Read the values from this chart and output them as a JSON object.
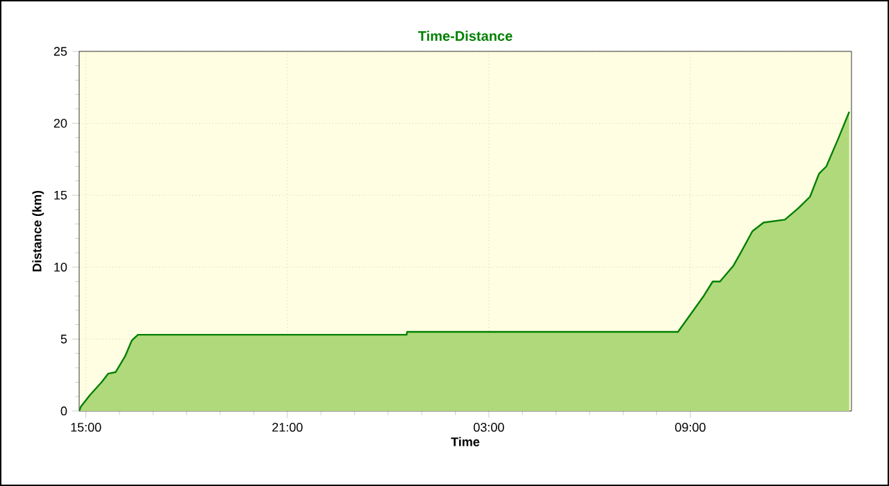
{
  "chart_data": {
    "type": "area",
    "title": "Time-Distance",
    "xlabel": "Time",
    "ylabel": "Distance (km)",
    "x": [
      "2000-01-01T14:48",
      "2000-01-01T14:51",
      "2000-01-01T15:07",
      "2000-01-01T15:28",
      "2000-01-01T15:40",
      "2000-01-01T15:53",
      "2000-01-01T16:10",
      "2000-01-01T16:22",
      "2000-01-01T16:33",
      "2000-01-02T00:33",
      "2000-01-02T00:34",
      "2000-01-02T08:38",
      "2000-01-02T09:24",
      "2000-01-02T09:40",
      "2000-01-02T09:53",
      "2000-01-02T10:17",
      "2000-01-02T10:30",
      "2000-01-02T10:51",
      "2000-01-02T11:11",
      "2000-01-02T11:49",
      "2000-01-02T12:13",
      "2000-01-02T12:34",
      "2000-01-02T12:50",
      "2000-01-02T13:03",
      "2000-01-02T13:24",
      "2000-01-02T13:44"
    ],
    "series": [
      {
        "color": "#008000",
        "values": [
          0,
          0.3,
          1.1,
          2.0,
          2.6,
          2.7,
          3.8,
          4.9,
          5.3,
          5.3,
          5.5,
          5.5,
          8.0,
          9.0,
          9.0,
          10.1,
          11.0,
          12.5,
          13.1,
          13.3,
          14.1,
          14.9,
          16.5,
          17.0,
          18.9,
          20.8
        ]
      }
    ],
    "xlim": [
      "2000-01-01T14:48",
      "2000-01-02T13:48"
    ],
    "ylim": [
      0,
      25
    ],
    "xticks": [
      {
        "value": "2000-01-01T15:00",
        "label": "15:00"
      },
      {
        "value": "2000-01-01T21:00",
        "label": "21:00"
      },
      {
        "value": "2000-01-02T03:00",
        "label": "03:00"
      },
      {
        "value": "2000-01-02T09:00",
        "label": "09:00"
      }
    ],
    "yticks": [
      0,
      5,
      10,
      15,
      20,
      25
    ],
    "grid": true
  }
}
